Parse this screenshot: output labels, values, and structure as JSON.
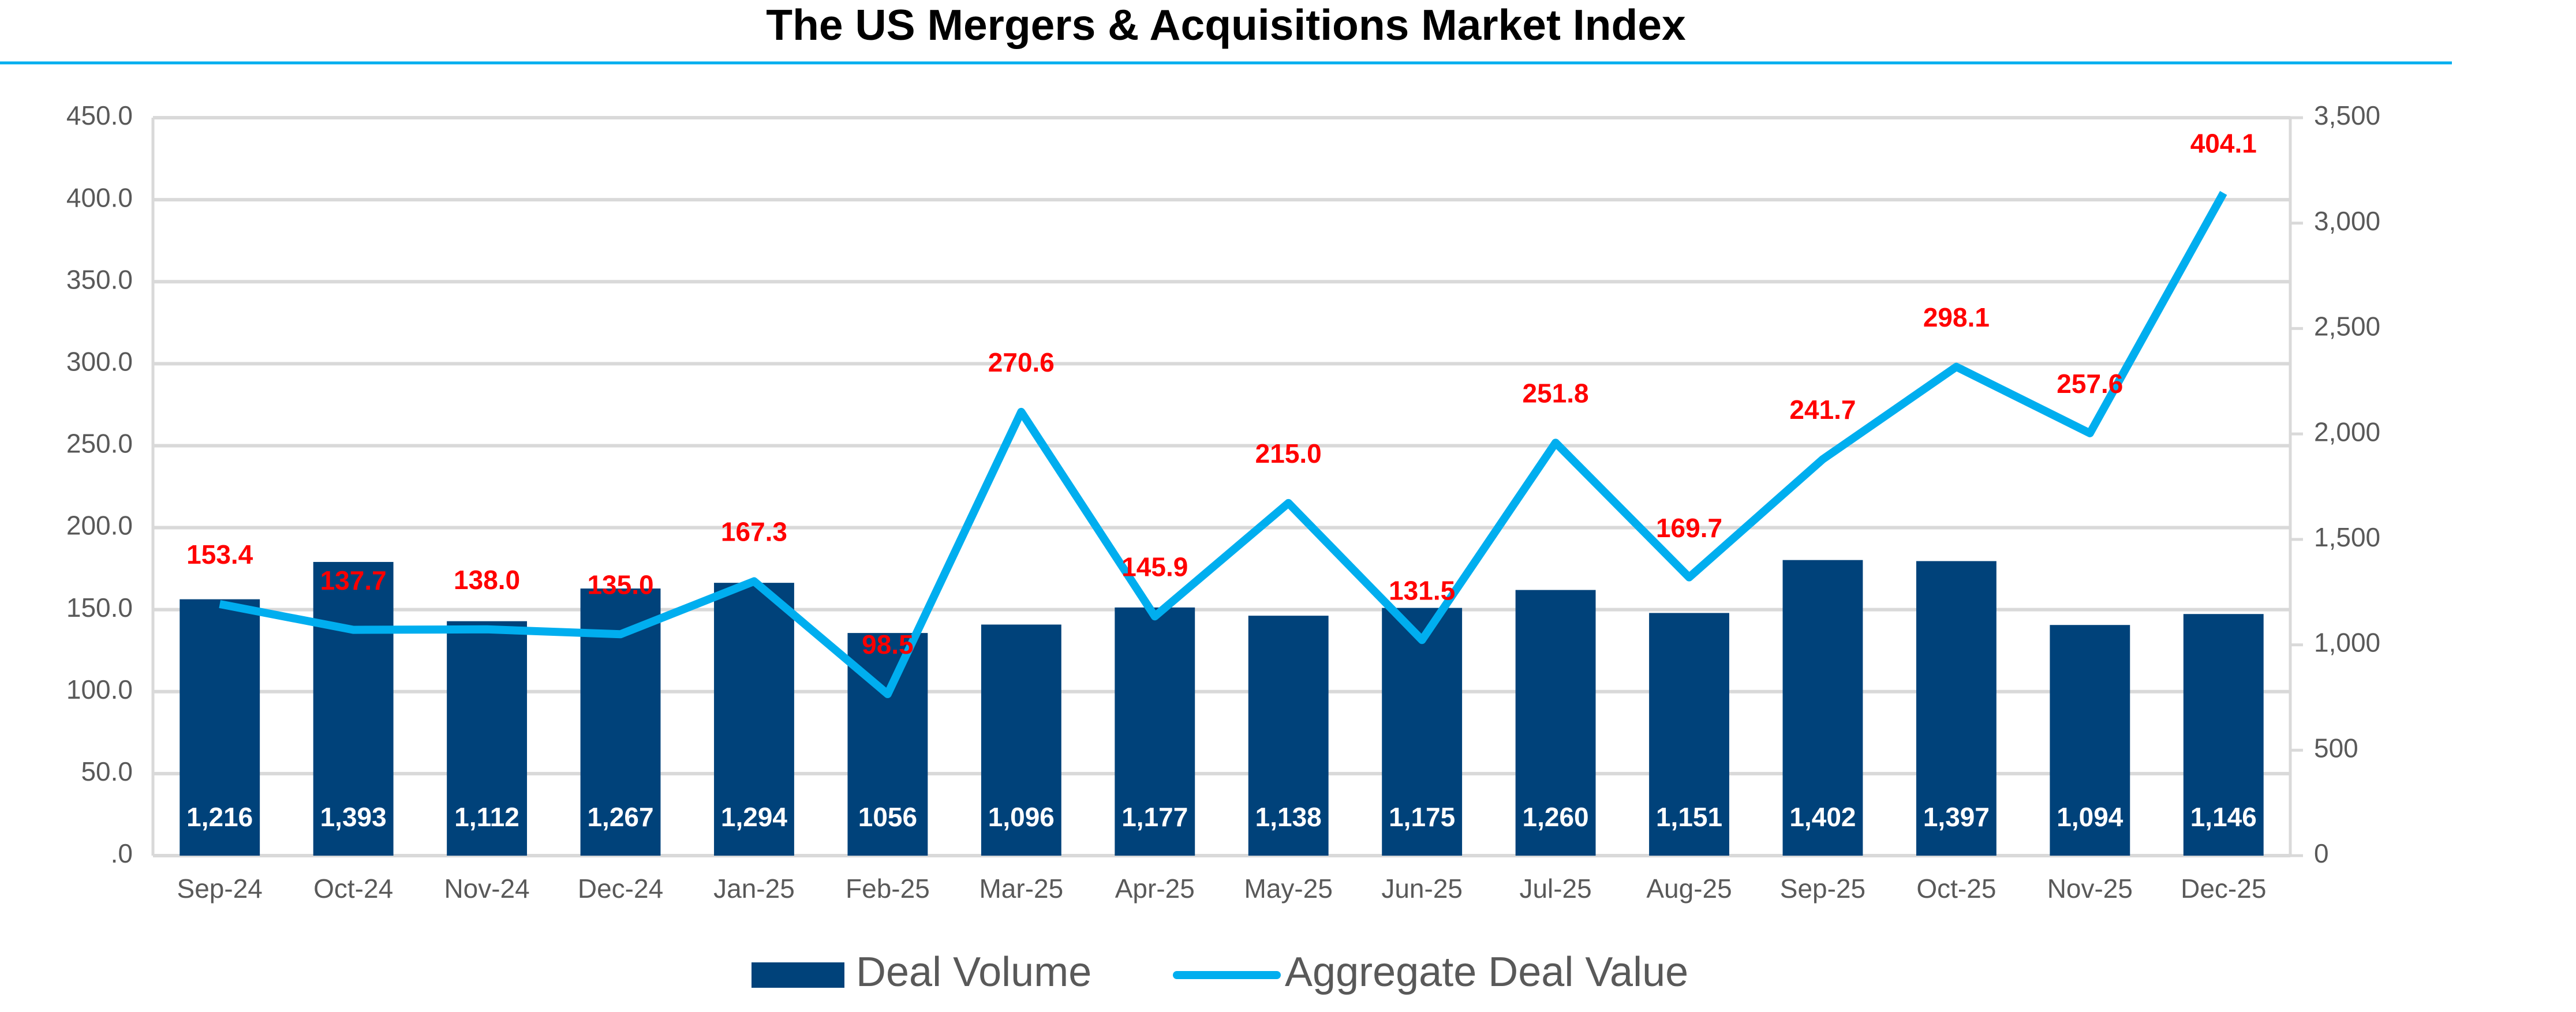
{
  "chart_data": {
    "type": "bar-line",
    "title": "The US Mergers & Acquisitions Market Index",
    "categories": [
      "Sep-24",
      "Oct-24",
      "Nov-24",
      "Dec-24",
      "Jan-25",
      "Feb-25",
      "Mar-25",
      "Apr-25",
      "May-25",
      "Jun-25",
      "Jul-25",
      "Aug-25",
      "Sep-25",
      "Oct-25",
      "Nov-25",
      "Dec-25"
    ],
    "series": [
      {
        "name": "Deal Volume",
        "type": "bar",
        "axis": "y2",
        "color": "#00427a",
        "values": [
          1216,
          1393,
          1112,
          1267,
          1294,
          1056,
          1096,
          1177,
          1138,
          1175,
          1260,
          1151,
          1402,
          1397,
          1094,
          1146
        ],
        "value_labels": [
          "1,216",
          "1,393",
          "1,112",
          "1,267",
          "1,294",
          "1056",
          "1,096",
          "1,177",
          "1,138",
          "1,175",
          "1,260",
          "1,151",
          "1,402",
          "1,397",
          "1,094",
          "1,146"
        ]
      },
      {
        "name": "Aggregate Deal Value",
        "type": "line",
        "axis": "y",
        "color": "#00aeef",
        "values": [
          153.4,
          137.7,
          138.0,
          135.0,
          167.3,
          98.5,
          270.6,
          145.9,
          215.0,
          131.5,
          251.8,
          169.7,
          241.7,
          298.1,
          257.6,
          404.1
        ],
        "value_labels": [
          "153.4",
          "137.7",
          "138.0",
          "135.0",
          "167.3",
          "98.5",
          "270.6",
          "145.9",
          "215.0",
          "131.5",
          "251.8",
          "169.7",
          "241.7",
          "298.1",
          "257.6",
          "404.1"
        ]
      }
    ],
    "ylim": [
      0,
      450
    ],
    "yticks": [
      {
        "value": 0,
        "label": ".0"
      },
      {
        "value": 50,
        "label": "50.0"
      },
      {
        "value": 100,
        "label": "100.0"
      },
      {
        "value": 150,
        "label": "150.0"
      },
      {
        "value": 200,
        "label": "200.0"
      },
      {
        "value": 250,
        "label": "250.0"
      },
      {
        "value": 300,
        "label": "300.0"
      },
      {
        "value": 350,
        "label": "350.0"
      },
      {
        "value": 400,
        "label": "400.0"
      },
      {
        "value": 450,
        "label": "450.0"
      }
    ],
    "y2lim": [
      0,
      3500
    ],
    "y2ticks": [
      0,
      500,
      {
        "value": 1000,
        "label": "1,000"
      },
      {
        "value": 1500,
        "label": "1,500"
      },
      {
        "value": 2000,
        "label": "2,000"
      },
      {
        "value": 2500,
        "label": "2,500"
      },
      {
        "value": 3000,
        "label": "3,000"
      },
      {
        "value": 3500,
        "label": "3,500"
      }
    ],
    "grid": true,
    "legend": "bottom",
    "label_color": "#ff0000"
  }
}
